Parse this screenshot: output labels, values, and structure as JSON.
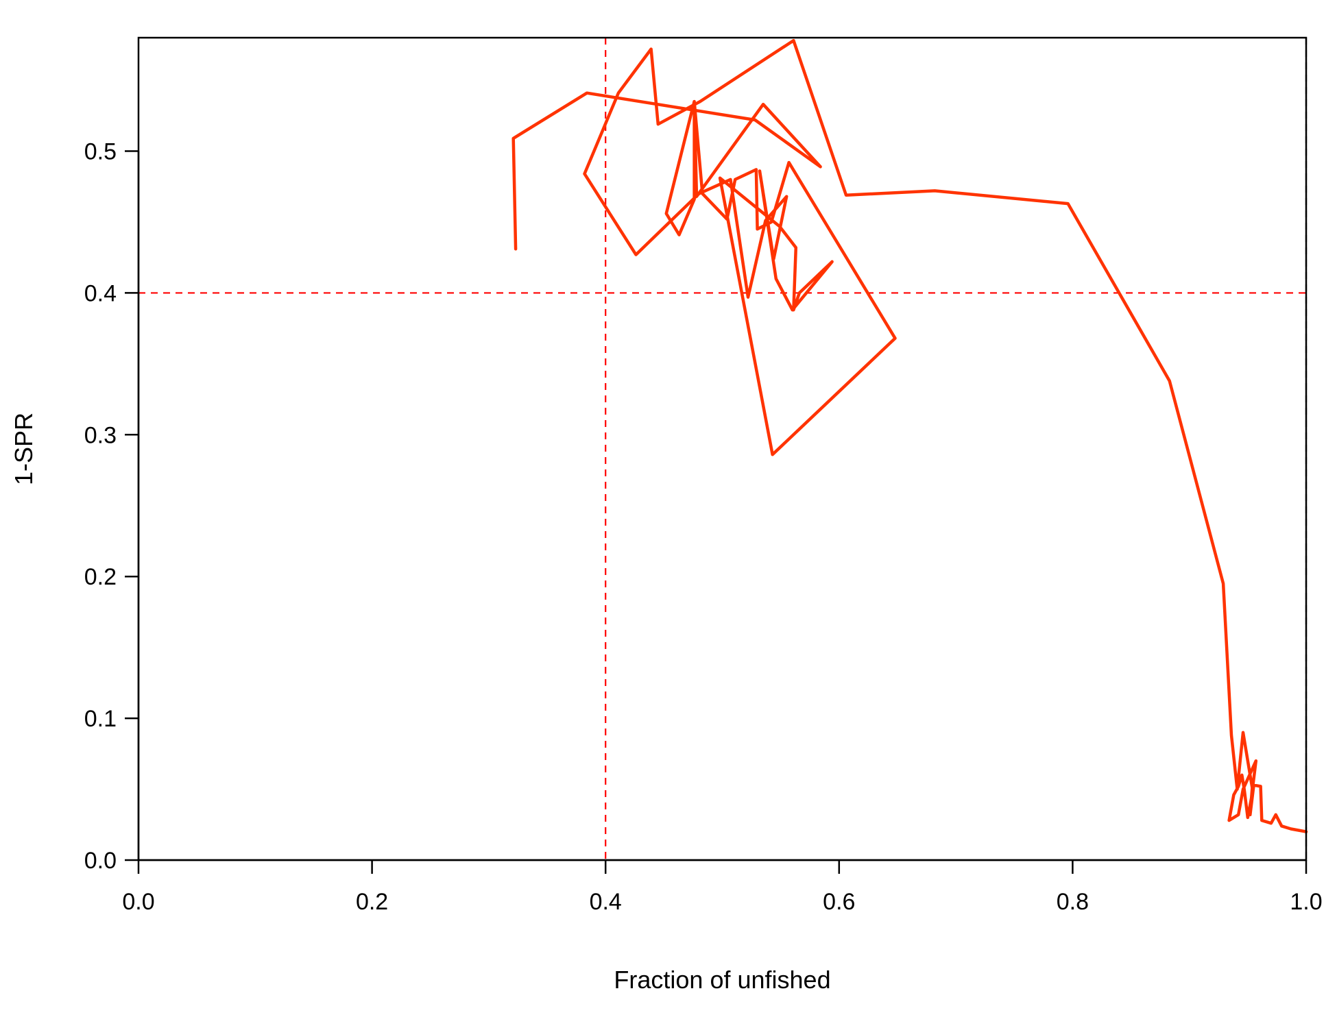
{
  "chart_data": {
    "type": "line",
    "title": "",
    "xlabel": "Fraction of unfished",
    "ylabel": "1-SPR",
    "xlim": [
      0,
      1
    ],
    "ylim": [
      0,
      0.58
    ],
    "xticks": [
      0,
      0.2,
      0.4,
      0.6,
      0.8,
      1.0
    ],
    "yticks": [
      0,
      0.1,
      0.2,
      0.3,
      0.4,
      0.5
    ],
    "xtick_labels": [
      "0.0",
      "0.2",
      "0.4",
      "0.6",
      "0.8",
      "1.0"
    ],
    "ytick_labels": [
      "0.0",
      "0.1",
      "0.2",
      "0.3",
      "0.4",
      "0.5"
    ],
    "grid": false,
    "reference_lines": [
      {
        "axis": "x",
        "value": 0.4,
        "style": "dashed",
        "color": "#ff0000"
      },
      {
        "axis": "y",
        "value": 0.4,
        "style": "dashed",
        "color": "#ff0000"
      },
      {
        "axis": "x",
        "value": 1.0,
        "style": "dashed",
        "color": "#000000"
      }
    ],
    "series": [
      {
        "color": "#ff3300",
        "points": [
          [
            1.0,
            0.02
          ],
          [
            0.987,
            0.022
          ],
          [
            0.979,
            0.024
          ],
          [
            0.974,
            0.032
          ],
          [
            0.97,
            0.026
          ],
          [
            0.962,
            0.028
          ],
          [
            0.961,
            0.052
          ],
          [
            0.954,
            0.053
          ],
          [
            0.952,
            0.032
          ],
          [
            0.955,
            0.052
          ],
          [
            0.95,
            0.03
          ],
          [
            0.947,
            0.05
          ],
          [
            0.945,
            0.06
          ],
          [
            0.942,
            0.052
          ],
          [
            0.938,
            0.046
          ],
          [
            0.934,
            0.028
          ],
          [
            0.942,
            0.032
          ],
          [
            0.946,
            0.05
          ],
          [
            0.957,
            0.07
          ],
          [
            0.954,
            0.05
          ],
          [
            0.946,
            0.09
          ],
          [
            0.941,
            0.05
          ],
          [
            0.936,
            0.088
          ],
          [
            0.929,
            0.195
          ],
          [
            0.883,
            0.338
          ],
          [
            0.796,
            0.463
          ],
          [
            0.682,
            0.472
          ],
          [
            0.606,
            0.469
          ],
          [
            0.561,
            0.578
          ],
          [
            0.481,
            0.535
          ],
          [
            0.445,
            0.519
          ],
          [
            0.439,
            0.572
          ],
          [
            0.411,
            0.541
          ],
          [
            0.382,
            0.484
          ],
          [
            0.426,
            0.427
          ],
          [
            0.48,
            0.47
          ],
          [
            0.507,
            0.48
          ],
          [
            0.522,
            0.397
          ],
          [
            0.537,
            0.451
          ],
          [
            0.555,
            0.468
          ],
          [
            0.544,
            0.424
          ],
          [
            0.532,
            0.486
          ],
          [
            0.546,
            0.41
          ],
          [
            0.56,
            0.388
          ],
          [
            0.594,
            0.422
          ],
          [
            0.566,
            0.4
          ],
          [
            0.561,
            0.388
          ],
          [
            0.563,
            0.432
          ],
          [
            0.549,
            0.447
          ],
          [
            0.498,
            0.481
          ],
          [
            0.543,
            0.286
          ],
          [
            0.648,
            0.368
          ],
          [
            0.557,
            0.492
          ],
          [
            0.542,
            0.45
          ],
          [
            0.53,
            0.445
          ],
          [
            0.529,
            0.487
          ],
          [
            0.511,
            0.48
          ],
          [
            0.504,
            0.452
          ],
          [
            0.483,
            0.47
          ],
          [
            0.476,
            0.535
          ],
          [
            0.476,
            0.466
          ],
          [
            0.463,
            0.441
          ],
          [
            0.452,
            0.456
          ],
          [
            0.476,
            0.535
          ],
          [
            0.478,
            0.468
          ],
          [
            0.535,
            0.533
          ],
          [
            0.584,
            0.489
          ],
          [
            0.528,
            0.522
          ],
          [
            0.384,
            0.541
          ],
          [
            0.321,
            0.509
          ],
          [
            0.323,
            0.431
          ]
        ]
      }
    ]
  }
}
